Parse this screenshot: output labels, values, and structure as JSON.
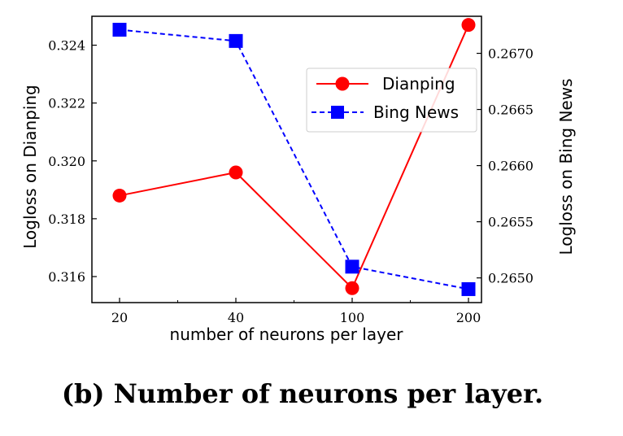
{
  "caption": "(b) Number of neurons per layer.",
  "colors": {
    "dianping": "#ff0000",
    "bing": "#0000ff"
  },
  "chart_data": {
    "type": "line",
    "xlabel": "number of neurons per layer",
    "categories": [
      "20",
      "40",
      "100",
      "200"
    ],
    "y_left": {
      "label": "Logloss on Dianping",
      "ylim": [
        0.3151,
        0.325
      ],
      "ticks": [
        "0.316",
        "0.318",
        "0.320",
        "0.322",
        "0.324"
      ]
    },
    "y_right": {
      "label": "Logloss on Bing News",
      "ylim": [
        0.26478,
        0.26733
      ],
      "ticks": [
        "0.2650",
        "0.2655",
        "0.2660",
        "0.2665",
        "0.2670"
      ]
    },
    "series": [
      {
        "name": "Dianping",
        "axis": "left",
        "marker": "circle",
        "line": "solid",
        "values": [
          0.3188,
          0.3196,
          0.3156,
          0.3247
        ]
      },
      {
        "name": "Bing News",
        "axis": "right",
        "marker": "square",
        "line": "dashed",
        "values": [
          0.26721,
          0.26711,
          0.2651,
          0.2649
        ]
      }
    ],
    "legend": "top-right",
    "grid": false
  }
}
